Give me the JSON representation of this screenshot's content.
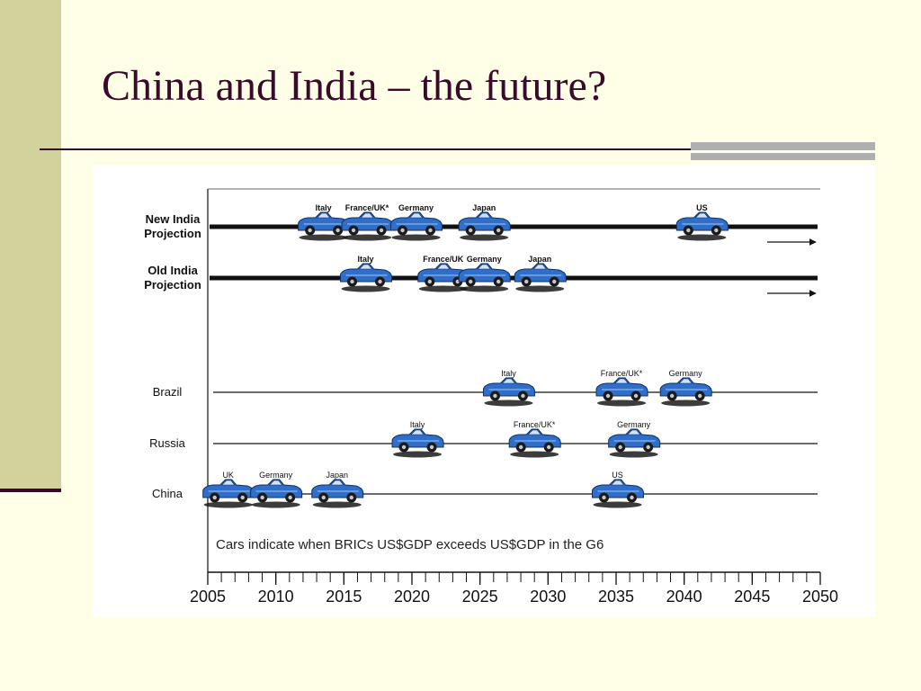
{
  "slide": {
    "title": "China and India – the future?"
  },
  "colors": {
    "title": "#3A0A2A",
    "band": "#D2D29C",
    "background": "#FFFEE6",
    "car": "#2F6FC9"
  },
  "chart_data": {
    "type": "timeline",
    "title": "",
    "xlabel": "",
    "ylabel": "",
    "xlim": [
      2005,
      2050
    ],
    "ticks": [
      2005,
      2010,
      2015,
      2020,
      2025,
      2030,
      2035,
      2040,
      2045,
      2050
    ],
    "minor_tick_step": 1,
    "note": "Cars indicate when BRICs US$GDP exceeds US$GDP in the G6",
    "rows": [
      {
        "name": "New India\nProjection",
        "arrow": true,
        "events": [
          {
            "label": "Italy",
            "year": 2013.5
          },
          {
            "label": "France/UK*",
            "year": 2016.7
          },
          {
            "label": "Germany",
            "year": 2020.3
          },
          {
            "label": "Japan",
            "year": 2025.3
          },
          {
            "label": "US",
            "year": 2041.3
          }
        ]
      },
      {
        "name": "Old India\nProjection",
        "arrow": true,
        "events": [
          {
            "label": "Italy",
            "year": 2016.6
          },
          {
            "label": "France/UK",
            "year": 2022.3
          },
          {
            "label": "Germany",
            "year": 2025.3
          },
          {
            "label": "Japan",
            "year": 2029.4
          }
        ]
      },
      {
        "name": "Brazil",
        "arrow": false,
        "events": [
          {
            "label": "Italy",
            "year": 2027.1
          },
          {
            "label": "France/UK*",
            "year": 2035.4
          },
          {
            "label": "Germany",
            "year": 2040.1
          }
        ]
      },
      {
        "name": "Russia",
        "arrow": false,
        "events": [
          {
            "label": "Italy",
            "year": 2020.4
          },
          {
            "label": "France/UK*",
            "year": 2029.0
          },
          {
            "label": "Germany",
            "year": 2036.3
          }
        ]
      },
      {
        "name": "China",
        "arrow": false,
        "events": [
          {
            "label": "UK",
            "year": 2006.5
          },
          {
            "label": "Germany",
            "year": 2010.0
          },
          {
            "label": "Japan",
            "year": 2014.5
          },
          {
            "label": "US",
            "year": 2035.1
          }
        ]
      }
    ]
  }
}
